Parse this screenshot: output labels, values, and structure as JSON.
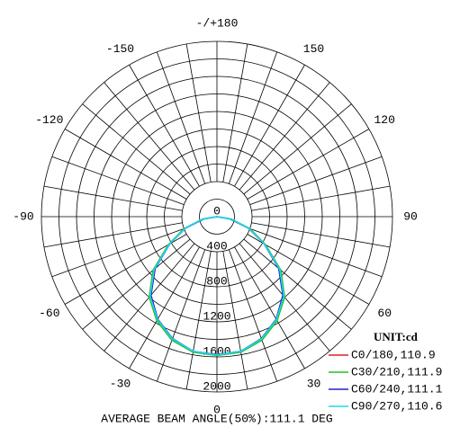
{
  "chart_data": {
    "type": "polar",
    "title": "AVERAGE BEAM ANGLE(50%):111.1 DEG",
    "unit_label": "UNIT:cd",
    "x": [
      -90,
      -80,
      -70,
      -60,
      -50,
      -40,
      -30,
      -20,
      -10,
      0,
      10,
      20,
      30,
      40,
      50,
      60,
      70,
      80,
      90
    ],
    "series": [
      {
        "name": "C0/180,110.9",
        "color": "#e02020",
        "values": [
          0,
          160,
          390,
          630,
          940,
          1190,
          1360,
          1490,
          1565,
          1580,
          1565,
          1490,
          1360,
          1190,
          940,
          630,
          390,
          160,
          0
        ]
      },
      {
        "name": "C30/210,111.9",
        "color": "#20c020",
        "values": [
          0,
          170,
          400,
          640,
          950,
          1200,
          1370,
          1500,
          1570,
          1585,
          1570,
          1500,
          1370,
          1200,
          950,
          640,
          400,
          170,
          0
        ]
      },
      {
        "name": "C60/240,111.1",
        "color": "#2020d0",
        "values": [
          0,
          150,
          380,
          620,
          920,
          1170,
          1350,
          1480,
          1560,
          1575,
          1560,
          1480,
          1350,
          1170,
          920,
          620,
          380,
          150,
          0
        ]
      },
      {
        "name": "C90/270,110.6",
        "color": "#20d8e8",
        "values": [
          0,
          165,
          385,
          625,
          935,
          1185,
          1355,
          1485,
          1560,
          1578,
          1560,
          1485,
          1355,
          1185,
          935,
          625,
          385,
          165,
          0
        ]
      }
    ],
    "rlim": [
      0,
      2000
    ],
    "rticks": [
      0,
      400,
      800,
      1200,
      1600,
      2000
    ],
    "rminor": [
      200,
      600,
      1000,
      1400,
      1800
    ],
    "thetaticks": [
      {
        "value": 180,
        "label": "-/+180"
      },
      150,
      120,
      90,
      60,
      30,
      0,
      -30,
      -60,
      -90,
      -120,
      -150
    ],
    "thetagrid": [
      0,
      10,
      20,
      30,
      40,
      50,
      60,
      70,
      80,
      90,
      100,
      110,
      120,
      130,
      140,
      150,
      160,
      170,
      180,
      190,
      200,
      210,
      220,
      230,
      240,
      250,
      260,
      270,
      280,
      290,
      300,
      310,
      320,
      330,
      340,
      350
    ],
    "spoke_start": 400
  }
}
